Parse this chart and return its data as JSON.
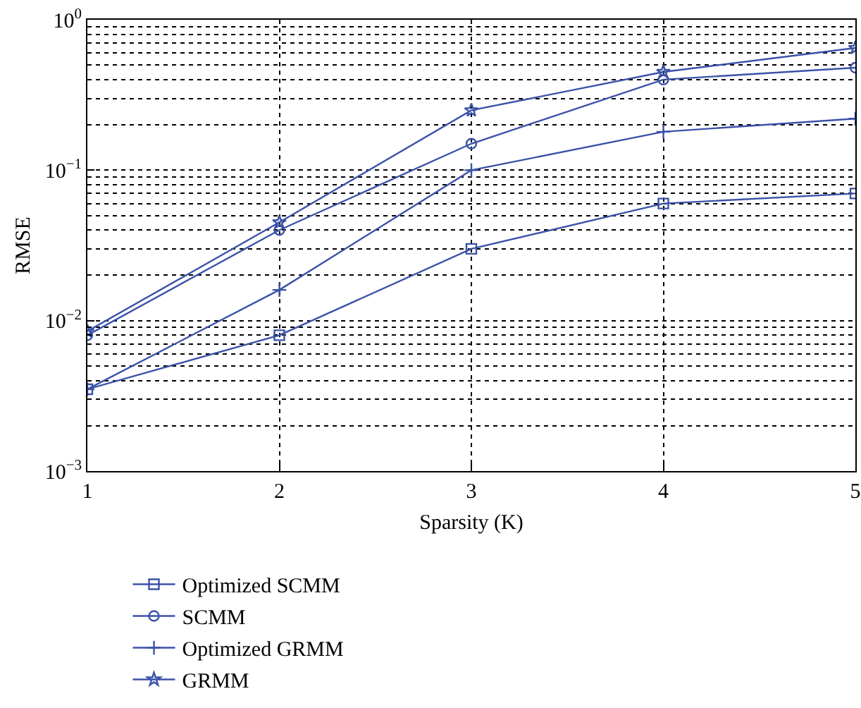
{
  "chart_data": {
    "type": "line",
    "xlabel": "Sparsity (K)",
    "ylabel": "RMSE",
    "x": [
      1,
      2,
      3,
      4,
      5
    ],
    "xlim": [
      1,
      5
    ],
    "xticks": [
      1,
      2,
      3,
      4,
      5
    ],
    "log": "y",
    "ylim": [
      0.001,
      1
    ],
    "yticks": [
      {
        "value": 0.001,
        "label": "10$^{−3}$"
      },
      {
        "value": 0.01,
        "label": "10$^{−2}$"
      },
      {
        "value": 0.1,
        "label": "10$^{−1}$"
      },
      {
        "value": 1,
        "label": "10$^{0}$"
      }
    ],
    "grid": true,
    "legend": "bottom",
    "line_style": "solid",
    "series": [
      {
        "name": "Optimized SCMM",
        "color": "#3a52a8",
        "marker": "square",
        "values": [
          0.0035,
          0.008,
          0.03,
          0.06,
          0.07
        ]
      },
      {
        "name": "SCMM",
        "color": "#3a52a8",
        "marker": "circle",
        "values": [
          0.008,
          0.04,
          0.15,
          0.4,
          0.48
        ]
      },
      {
        "name": "Optimized GRMM",
        "color": "#3a52a8",
        "marker": "cross",
        "values": [
          0.0035,
          0.016,
          0.1,
          0.18,
          0.22
        ]
      },
      {
        "name": "GRMM",
        "color": "#3a52a8",
        "marker": "star",
        "values": [
          0.0085,
          0.045,
          0.25,
          0.45,
          0.65
        ]
      }
    ]
  }
}
